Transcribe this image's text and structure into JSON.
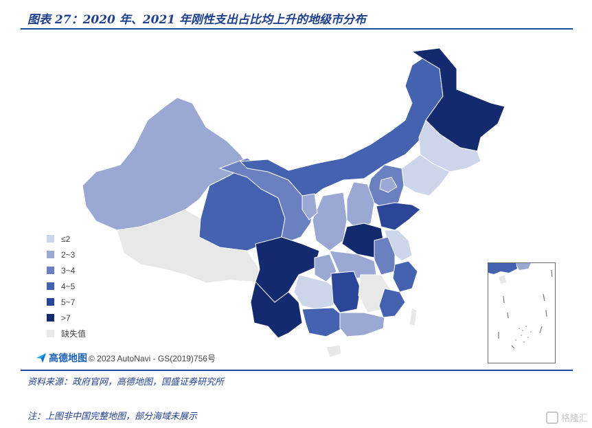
{
  "title": "图表 27：2020 年、2021 年刚性支出占比均上升的地级市分布",
  "legend": {
    "items": [
      {
        "label": "≤2",
        "color": "#cdd5ea"
      },
      {
        "label": "2~3",
        "color": "#9aa8d3"
      },
      {
        "label": "3~4",
        "color": "#6b80c0"
      },
      {
        "label": "4~5",
        "color": "#4562b0"
      },
      {
        "label": "5~7",
        "color": "#2b4698"
      },
      {
        "label": ">7",
        "color": "#142a6e"
      },
      {
        "label": "缺失值",
        "color": "#e8e8e8"
      }
    ]
  },
  "attribution": {
    "brand": "高德地图",
    "copyright": "© 2023 AutoNavi - GS(2019)756号"
  },
  "source": "资料来源：政府官网，高德地图，国盛证券研究所",
  "note": "注：上图非中国完整地图，部分海域未展示",
  "watermark": "格隆汇"
}
